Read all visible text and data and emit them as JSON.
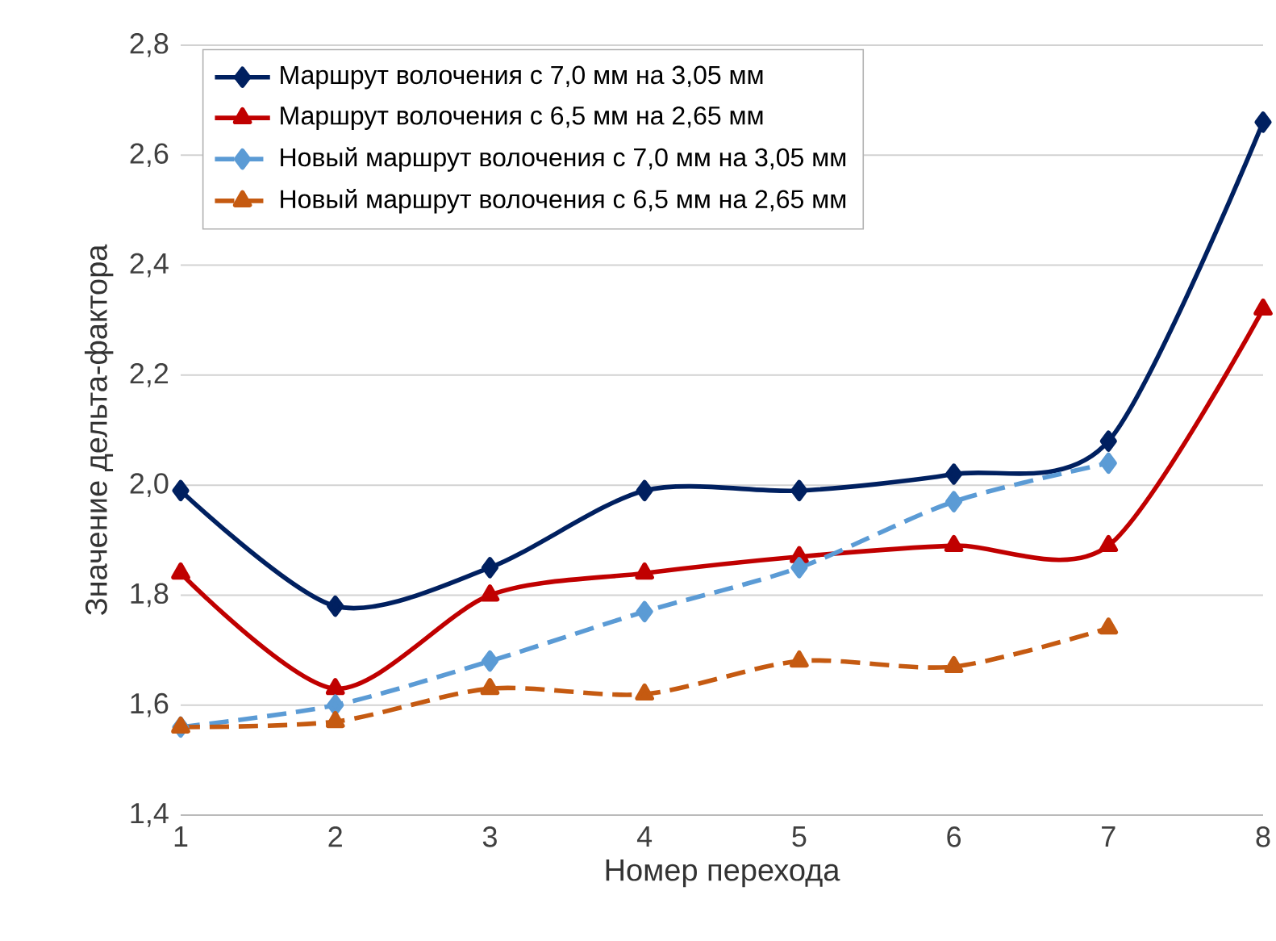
{
  "chart_data": {
    "type": "line",
    "xlabel": "Номер перехода",
    "ylabel": "Значение дельта-фактора",
    "x": [
      1,
      2,
      3,
      4,
      5,
      6,
      7,
      8
    ],
    "xlim": [
      1,
      8
    ],
    "xticks": [
      1,
      2,
      3,
      4,
      5,
      6,
      7,
      8
    ],
    "ylim": [
      1.4,
      2.8
    ],
    "yticks": [
      {
        "value": 1.4,
        "label": "1,4"
      },
      {
        "value": 1.6,
        "label": "1,6"
      },
      {
        "value": 1.8,
        "label": "1,8"
      },
      {
        "value": 2.0,
        "label": "2,0"
      },
      {
        "value": 2.2,
        "label": "2,2"
      },
      {
        "value": 2.4,
        "label": "2,4"
      },
      {
        "value": 2.6,
        "label": "2,6"
      },
      {
        "value": 2.8,
        "label": "2,8"
      }
    ],
    "grid": "y",
    "legend": "top left",
    "series": [
      {
        "name": "Маршрут волочения с 7,0 мм на 3,05 мм",
        "color": "#002060",
        "marker": "diamond",
        "line_style": "solid",
        "values": [
          1.99,
          1.78,
          1.85,
          1.99,
          1.99,
          2.02,
          2.08,
          2.66
        ]
      },
      {
        "name": "Маршрут волочения с 6,5 мм на 2,65 мм",
        "color": "#c00000",
        "marker": "triangle",
        "line_style": "solid",
        "values": [
          1.84,
          1.63,
          1.8,
          1.84,
          1.87,
          1.89,
          1.89,
          2.32
        ]
      },
      {
        "name": "Новый маршрут волочения с 7,0 мм на 3,05 мм",
        "color": "#5b9bd5",
        "marker": "diamond",
        "line_style": "dashed",
        "values": [
          1.56,
          1.6,
          1.68,
          1.77,
          1.85,
          1.97,
          2.04,
          null
        ]
      },
      {
        "name": "Новый маршрут волочения с 6,5 мм на 2,65 мм",
        "color": "#c55a11",
        "marker": "triangle",
        "line_style": "dashed",
        "values": [
          1.56,
          1.57,
          1.63,
          1.62,
          1.68,
          1.67,
          1.74,
          null
        ]
      }
    ]
  }
}
